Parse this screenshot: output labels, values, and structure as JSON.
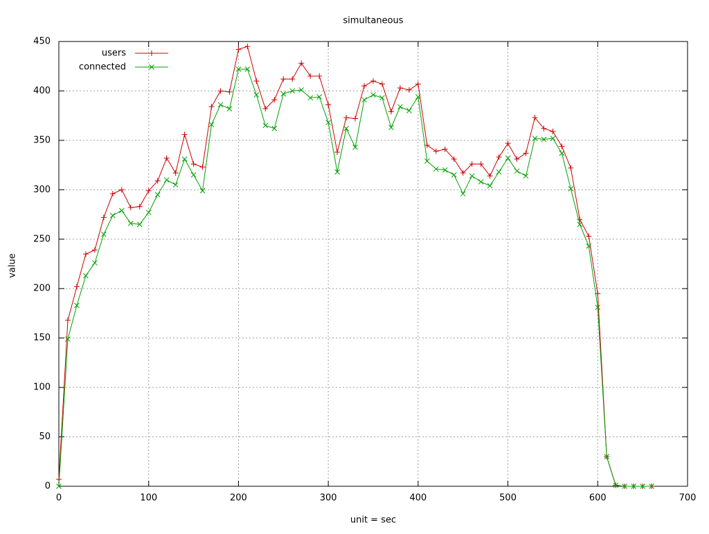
{
  "chart_data": {
    "type": "line",
    "title": "simultaneous",
    "x_label": "unit = sec",
    "y_label": "value",
    "x": [
      0,
      10,
      20,
      30,
      40,
      50,
      60,
      70,
      80,
      90,
      100,
      110,
      120,
      130,
      140,
      150,
      160,
      170,
      180,
      190,
      200,
      210,
      220,
      230,
      240,
      250,
      260,
      270,
      280,
      290,
      300,
      310,
      320,
      330,
      340,
      350,
      360,
      370,
      380,
      390,
      400,
      410,
      420,
      430,
      440,
      450,
      460,
      470,
      480,
      490,
      500,
      510,
      520,
      530,
      540,
      550,
      560,
      570,
      580,
      590,
      600,
      610,
      620,
      630,
      640,
      650,
      660
    ],
    "series": [
      {
        "name": "users",
        "color": "#cc0000",
        "marker": "plus",
        "values": [
          7,
          168,
          202,
          235,
          239,
          272,
          296,
          300,
          282,
          283,
          299,
          309,
          332,
          317,
          356,
          326,
          323,
          384,
          400,
          399,
          442,
          445,
          410,
          382,
          391,
          412,
          412,
          428,
          415,
          415,
          386,
          338,
          373,
          372,
          405,
          410,
          407,
          379,
          403,
          401,
          407,
          345,
          339,
          341,
          331,
          317,
          326,
          326,
          314,
          333,
          347,
          331,
          337,
          373,
          362,
          359,
          344,
          322,
          270,
          253,
          195,
          30,
          1,
          0,
          0,
          0,
          0
        ]
      },
      {
        "name": "connected",
        "color": "#00a000",
        "marker": "cross",
        "values": [
          0,
          149,
          183,
          213,
          226,
          255,
          274,
          279,
          266,
          265,
          277,
          295,
          310,
          305,
          331,
          315,
          299,
          366,
          386,
          382,
          422,
          422,
          396,
          365,
          362,
          397,
          400,
          401,
          393,
          394,
          368,
          318,
          362,
          343,
          391,
          396,
          393,
          363,
          384,
          380,
          394,
          329,
          321,
          320,
          315,
          296,
          314,
          308,
          304,
          318,
          332,
          319,
          314,
          352,
          351,
          352,
          337,
          301,
          265,
          243,
          181,
          30,
          1,
          0,
          0,
          0,
          0
        ]
      }
    ],
    "xlim": [
      0,
      700
    ],
    "xticks": [
      0,
      100,
      200,
      300,
      400,
      500,
      600,
      700
    ],
    "ylim": [
      0,
      450
    ],
    "yticks": [
      0,
      50,
      100,
      150,
      200,
      250,
      300,
      350,
      400,
      450
    ],
    "grid": true,
    "legend": "top-left"
  }
}
